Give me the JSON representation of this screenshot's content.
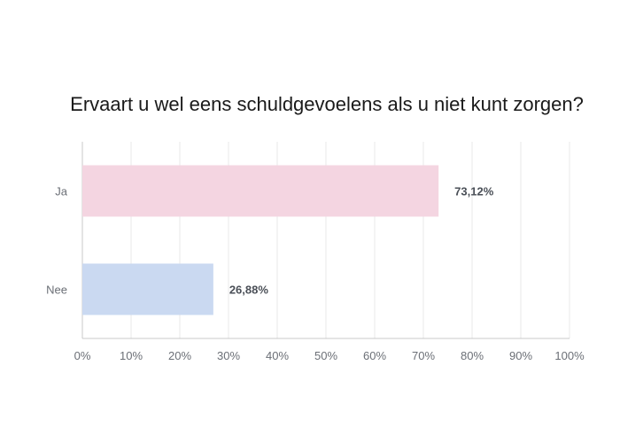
{
  "chart_data": {
    "type": "bar",
    "orientation": "horizontal",
    "title": "Ervaart u wel eens schuldgevoelens als u niet kunt zorgen?",
    "categories": [
      "Ja",
      "Nee"
    ],
    "values": [
      73.12,
      26.88
    ],
    "data_labels": [
      "73,12%",
      "26,88%"
    ],
    "colors": [
      "#f4d5e1",
      "#cad9f1"
    ],
    "xlim": [
      0,
      100
    ],
    "x_ticks": [
      "0%",
      "10%",
      "20%",
      "30%",
      "40%",
      "50%",
      "60%",
      "70%",
      "80%",
      "90%",
      "100%"
    ],
    "grid": true,
    "legend": "none"
  }
}
